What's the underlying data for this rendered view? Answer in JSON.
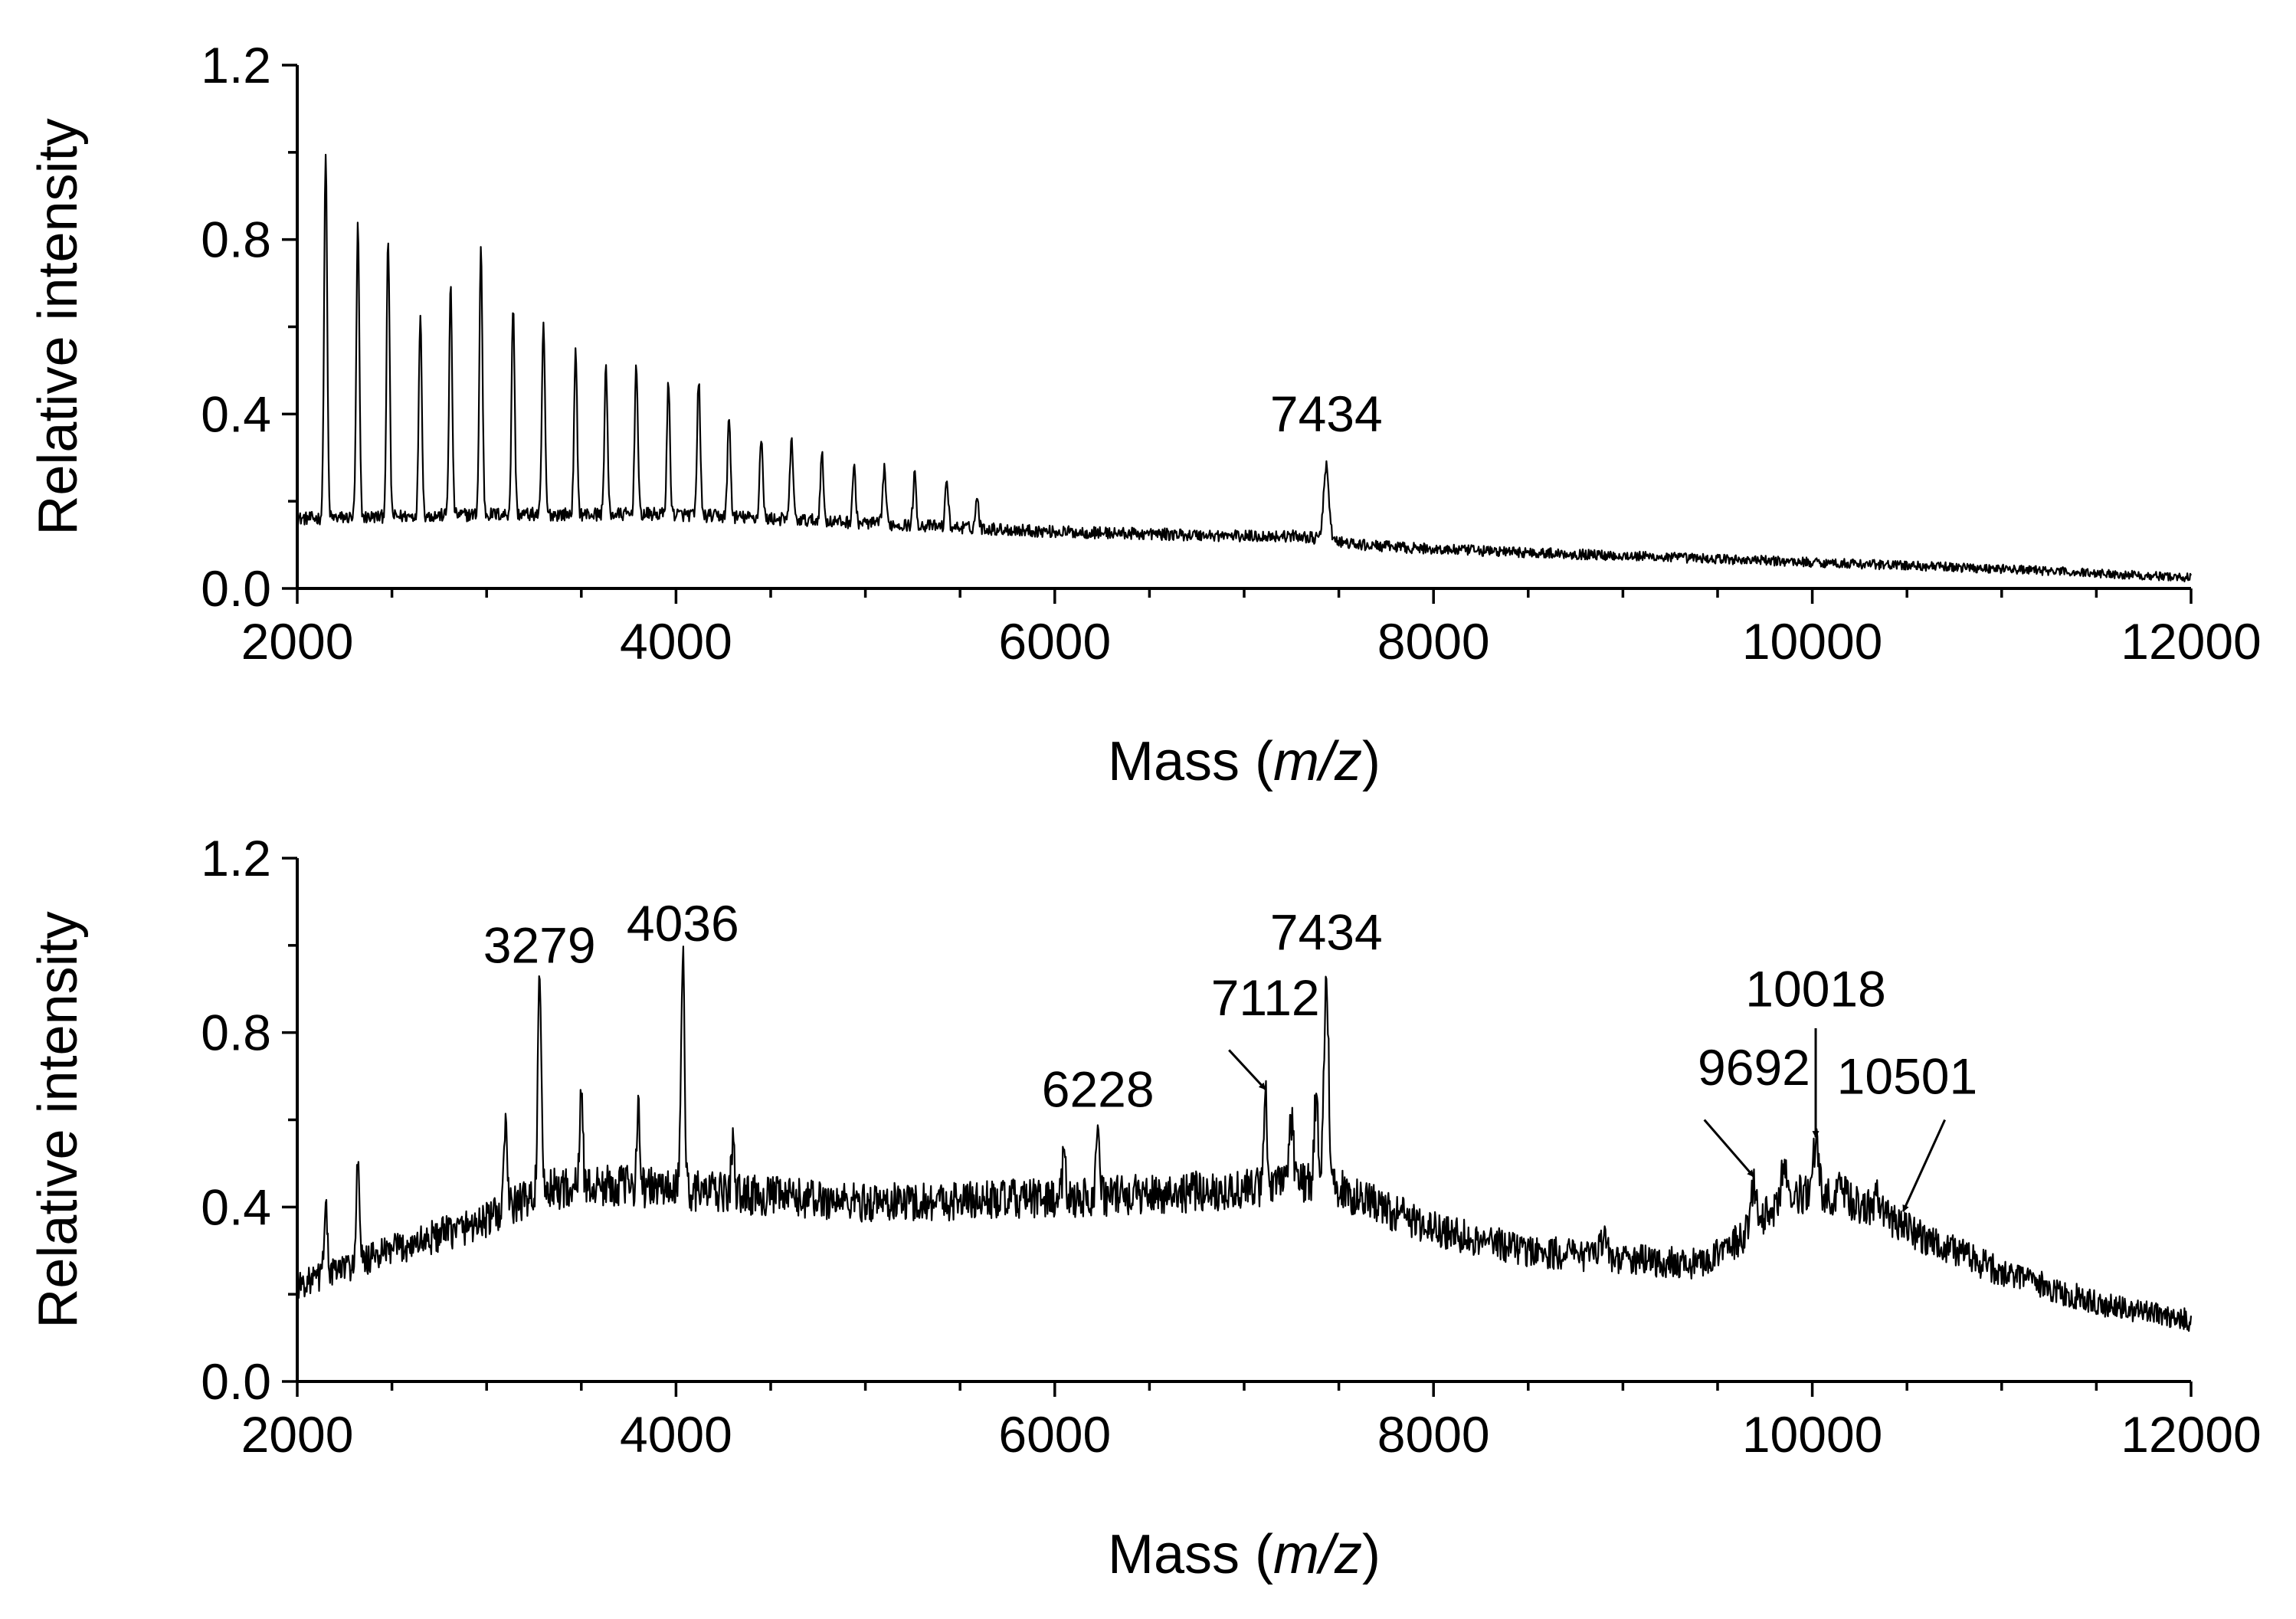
{
  "chart_data": [
    {
      "type": "line",
      "panel": "top",
      "title": "",
      "xlabel": {
        "prefix": "Mass (",
        "italic": "m/z",
        "suffix": ")"
      },
      "ylabel": "Relative intensity",
      "xlim": [
        2000,
        12000
      ],
      "ylim": [
        0.0,
        1.2
      ],
      "xticks": [
        2000,
        4000,
        6000,
        8000,
        10000,
        12000
      ],
      "xtick_labels": [
        "2000",
        "4000",
        "6000",
        "8000",
        "10000",
        "12000"
      ],
      "yticks": [
        0.0,
        0.4,
        0.8,
        1.2
      ],
      "ytick_labels": [
        "0.0",
        "0.4",
        "0.8",
        "1.2"
      ],
      "line_color": "#000000",
      "baseline": [
        [
          2000,
          0.16
        ],
        [
          3000,
          0.17
        ],
        [
          4000,
          0.17
        ],
        [
          5000,
          0.15
        ],
        [
          6000,
          0.13
        ],
        [
          7000,
          0.12
        ],
        [
          7300,
          0.12
        ],
        [
          7600,
          0.1
        ],
        [
          8000,
          0.09
        ],
        [
          9000,
          0.075
        ],
        [
          10000,
          0.06
        ],
        [
          11000,
          0.045
        ],
        [
          12000,
          0.025
        ]
      ],
      "noise_amplitude": 0.025,
      "peaks": [
        {
          "mass": 2150,
          "intensity": 1.0,
          "width": 8
        },
        {
          "mass": 2320,
          "intensity": 0.83,
          "width": 8
        },
        {
          "mass": 2480,
          "intensity": 0.8,
          "width": 8
        },
        {
          "mass": 2650,
          "intensity": 0.63,
          "width": 8
        },
        {
          "mass": 2810,
          "intensity": 0.69,
          "width": 8
        },
        {
          "mass": 2970,
          "intensity": 0.78,
          "width": 8
        },
        {
          "mass": 3140,
          "intensity": 0.65,
          "width": 8
        },
        {
          "mass": 3300,
          "intensity": 0.61,
          "width": 8
        },
        {
          "mass": 3470,
          "intensity": 0.54,
          "width": 8
        },
        {
          "mass": 3630,
          "intensity": 0.51,
          "width": 8
        },
        {
          "mass": 3790,
          "intensity": 0.52,
          "width": 8
        },
        {
          "mass": 3960,
          "intensity": 0.47,
          "width": 8
        },
        {
          "mass": 4120,
          "intensity": 0.48,
          "width": 8
        },
        {
          "mass": 4280,
          "intensity": 0.39,
          "width": 8
        },
        {
          "mass": 4450,
          "intensity": 0.35,
          "width": 8
        },
        {
          "mass": 4610,
          "intensity": 0.35,
          "width": 8
        },
        {
          "mass": 4770,
          "intensity": 0.31,
          "width": 8
        },
        {
          "mass": 4940,
          "intensity": 0.28,
          "width": 8
        },
        {
          "mass": 5100,
          "intensity": 0.28,
          "width": 8
        },
        {
          "mass": 5260,
          "intensity": 0.26,
          "width": 8
        },
        {
          "mass": 5430,
          "intensity": 0.25,
          "width": 8
        },
        {
          "mass": 5590,
          "intensity": 0.21,
          "width": 8
        },
        {
          "mass": 7434,
          "intensity": 0.28,
          "width": 14
        }
      ],
      "annotations": [
        {
          "text": "7434",
          "mass": 7434,
          "label_y": 0.36
        }
      ]
    },
    {
      "type": "line",
      "panel": "bottom",
      "title": "",
      "xlabel": {
        "prefix": "Mass (",
        "italic": "m/z",
        "suffix": ")"
      },
      "ylabel": "Relative intensity",
      "xlim": [
        2000,
        12000
      ],
      "ylim": [
        0.0,
        1.2
      ],
      "xticks": [
        2000,
        4000,
        6000,
        8000,
        10000,
        12000
      ],
      "xtick_labels": [
        "2000",
        "4000",
        "6000",
        "8000",
        "10000",
        "12000"
      ],
      "yticks": [
        0.0,
        0.4,
        0.8,
        1.2
      ],
      "ytick_labels": [
        "0.0",
        "0.4",
        "0.8",
        "1.2"
      ],
      "line_color": "#000000",
      "baseline": [
        [
          2000,
          0.22
        ],
        [
          2500,
          0.3
        ],
        [
          3000,
          0.37
        ],
        [
          3300,
          0.44
        ],
        [
          3700,
          0.45
        ],
        [
          4000,
          0.44
        ],
        [
          5000,
          0.41
        ],
        [
          6000,
          0.42
        ],
        [
          7000,
          0.44
        ],
        [
          7300,
          0.46
        ],
        [
          7500,
          0.44
        ],
        [
          8000,
          0.35
        ],
        [
          8500,
          0.3
        ],
        [
          9000,
          0.28
        ],
        [
          9400,
          0.27
        ],
        [
          9600,
          0.32
        ],
        [
          9800,
          0.4
        ],
        [
          10000,
          0.44
        ],
        [
          10300,
          0.4
        ],
        [
          10500,
          0.35
        ],
        [
          11000,
          0.25
        ],
        [
          11500,
          0.18
        ],
        [
          12000,
          0.14
        ]
      ],
      "noise_amplitude": 0.045,
      "peaks": [
        {
          "mass": 2150,
          "intensity": 0.42,
          "width": 8
        },
        {
          "mass": 2320,
          "intensity": 0.5,
          "width": 8
        },
        {
          "mass": 3100,
          "intensity": 0.61,
          "width": 8
        },
        {
          "mass": 3279,
          "intensity": 0.91,
          "width": 9
        },
        {
          "mass": 3500,
          "intensity": 0.68,
          "width": 8
        },
        {
          "mass": 3800,
          "intensity": 0.64,
          "width": 8
        },
        {
          "mass": 4036,
          "intensity": 0.99,
          "width": 9
        },
        {
          "mass": 4300,
          "intensity": 0.55,
          "width": 8
        },
        {
          "mass": 6050,
          "intensity": 0.55,
          "width": 8
        },
        {
          "mass": 6228,
          "intensity": 0.59,
          "width": 9
        },
        {
          "mass": 7112,
          "intensity": 0.67,
          "width": 9
        },
        {
          "mass": 7250,
          "intensity": 0.6,
          "width": 10
        },
        {
          "mass": 7380,
          "intensity": 0.65,
          "width": 10
        },
        {
          "mass": 7434,
          "intensity": 0.95,
          "width": 12
        },
        {
          "mass": 8900,
          "intensity": 0.33,
          "width": 20
        },
        {
          "mass": 9692,
          "intensity": 0.45,
          "width": 16
        },
        {
          "mass": 9850,
          "intensity": 0.51,
          "width": 14
        },
        {
          "mass": 10018,
          "intensity": 0.54,
          "width": 14
        },
        {
          "mass": 10150,
          "intensity": 0.47,
          "width": 16
        },
        {
          "mass": 10350,
          "intensity": 0.42,
          "width": 18
        },
        {
          "mass": 10501,
          "intensity": 0.36,
          "width": 18
        }
      ],
      "annotations": [
        {
          "text": "3279",
          "mass": 3279,
          "label_y": 0.96
        },
        {
          "text": "4036",
          "mass": 4036,
          "label_y": 1.01
        },
        {
          "text": "6228",
          "mass": 6228,
          "label_y": 0.63
        },
        {
          "text": "7112",
          "mass": 7112,
          "label_y": 0.84,
          "arrow": {
            "from": [
              6920,
              0.76
            ],
            "to": [
              7112,
              0.67
            ]
          }
        },
        {
          "text": "7434",
          "mass": 7434,
          "label_y": 0.99
        },
        {
          "text": "9692",
          "mass": 9692,
          "label_y": 0.68,
          "arrow": {
            "from": [
              9430,
              0.6
            ],
            "to": [
              9690,
              0.47
            ]
          }
        },
        {
          "text": "10018",
          "mass": 10018,
          "label_y": 0.86,
          "arrow": {
            "from": [
              10018,
              0.81
            ],
            "to": [
              10018,
              0.56
            ]
          }
        },
        {
          "text": "10501",
          "mass": 10501,
          "label_y": 0.66,
          "arrow": {
            "from": [
              10700,
              0.6
            ],
            "to": [
              10480,
              0.39
            ]
          }
        }
      ]
    }
  ]
}
